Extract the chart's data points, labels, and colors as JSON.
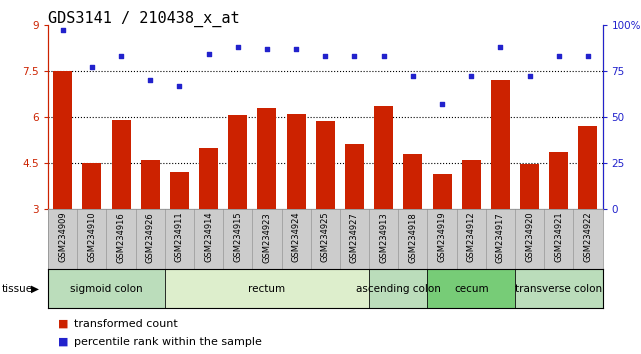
{
  "title": "GDS3141 / 210438_x_at",
  "samples": [
    "GSM234909",
    "GSM234910",
    "GSM234916",
    "GSM234926",
    "GSM234911",
    "GSM234914",
    "GSM234915",
    "GSM234923",
    "GSM234924",
    "GSM234925",
    "GSM234927",
    "GSM234913",
    "GSM234918",
    "GSM234919",
    "GSM234912",
    "GSM234917",
    "GSM234920",
    "GSM234921",
    "GSM234922"
  ],
  "bar_values": [
    7.5,
    4.5,
    5.9,
    4.6,
    4.2,
    5.0,
    6.05,
    6.3,
    6.1,
    5.85,
    5.1,
    6.35,
    4.8,
    4.15,
    4.6,
    7.2,
    4.45,
    4.85,
    5.7
  ],
  "dot_values": [
    97,
    77,
    83,
    70,
    67,
    84,
    88,
    87,
    87,
    83,
    83,
    83,
    72,
    57,
    72,
    88,
    72,
    83,
    83
  ],
  "ylim_left": [
    3,
    9
  ],
  "ylim_right": [
    0,
    100
  ],
  "yticks_left": [
    3,
    4.5,
    6,
    7.5,
    9
  ],
  "yticks_right": [
    0,
    25,
    50,
    75,
    100
  ],
  "ytick_labels_left": [
    "3",
    "4.5",
    "6",
    "7.5",
    "9"
  ],
  "ytick_labels_right": [
    "0",
    "25",
    "50",
    "75",
    "100%"
  ],
  "hlines": [
    4.5,
    6.0,
    7.5
  ],
  "bar_color": "#CC2200",
  "dot_color": "#2222CC",
  "tissue_groups": [
    {
      "label": "sigmoid colon",
      "start": 0,
      "end": 4,
      "color": "#BBDDBB"
    },
    {
      "label": "rectum",
      "start": 4,
      "end": 11,
      "color": "#DDEECC"
    },
    {
      "label": "ascending colon",
      "start": 11,
      "end": 13,
      "color": "#BBDDBB"
    },
    {
      "label": "cecum",
      "start": 13,
      "end": 16,
      "color": "#77CC77"
    },
    {
      "label": "transverse colon",
      "start": 16,
      "end": 19,
      "color": "#BBDDBB"
    }
  ],
  "tissue_label": "tissue",
  "legend_bar_label": "transformed count",
  "legend_dot_label": "percentile rank within the sample",
  "bar_color_hex": "#CC2200",
  "dot_color_hex": "#2222CC",
  "title_fontsize": 11,
  "tick_fontsize": 7.5,
  "sample_fontsize": 6.0,
  "tissue_fontsize": 7.5,
  "legend_fontsize": 8
}
